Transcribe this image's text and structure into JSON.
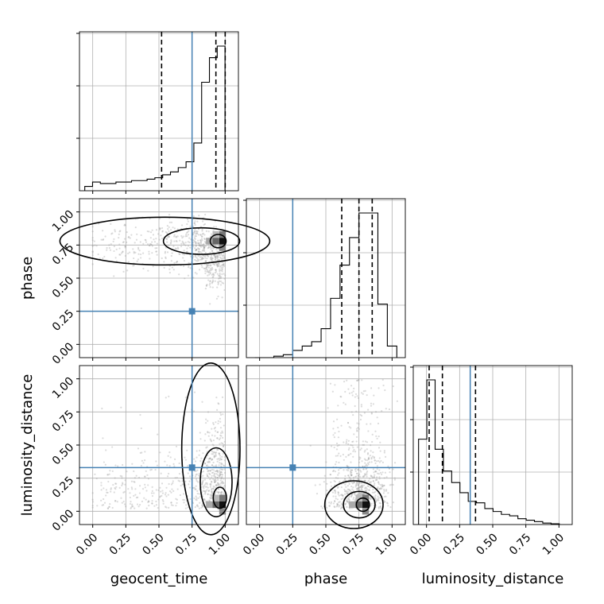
{
  "chart_data": {
    "type": "corner",
    "title": "",
    "parameters": [
      "geocent_time",
      "phase",
      "luminosity_distance"
    ],
    "axis_range": [
      -0.1,
      1.1
    ],
    "tick_labels": [
      "0.00",
      "0.25",
      "0.50",
      "0.75",
      "1.00"
    ],
    "grid": true,
    "truths": [
      0.75,
      0.25,
      0.33
    ],
    "truth_color": "#4682b4",
    "hist_bins": {
      "geocent_time": [
        0.03,
        0.06,
        0.05,
        0.05,
        0.06,
        0.06,
        0.07,
        0.07,
        0.08,
        0.09,
        0.11,
        0.13,
        0.16,
        0.2,
        0.33,
        0.75,
        0.92,
        1.0
      ],
      "phase": [
        0.0,
        0.0,
        0.01,
        0.02,
        0.05,
        0.08,
        0.11,
        0.2,
        0.41,
        0.64,
        0.83,
        1.0,
        1.0,
        0.37,
        0.08
      ],
      "luminosity_distance": [
        0.59,
        1.0,
        0.52,
        0.37,
        0.29,
        0.22,
        0.16,
        0.15,
        0.11,
        0.09,
        0.07,
        0.06,
        0.04,
        0.03,
        0.02,
        0.01,
        0.005
      ]
    },
    "quantiles": {
      "geocent_time": [
        0.52,
        0.93,
        1.0
      ],
      "phase": [
        0.62,
        0.75,
        0.85
      ],
      "luminosity_distance": [
        0.02,
        0.12,
        0.37
      ]
    },
    "density_peaks": [
      {
        "x_param": "geocent_time",
        "y_param": "phase",
        "peak": [
          0.98,
          0.78
        ]
      },
      {
        "x_param": "geocent_time",
        "y_param": "luminosity_distance",
        "peak": [
          0.98,
          0.05
        ]
      },
      {
        "x_param": "phase",
        "y_param": "luminosity_distance",
        "peak": [
          0.8,
          0.05
        ]
      }
    ]
  }
}
